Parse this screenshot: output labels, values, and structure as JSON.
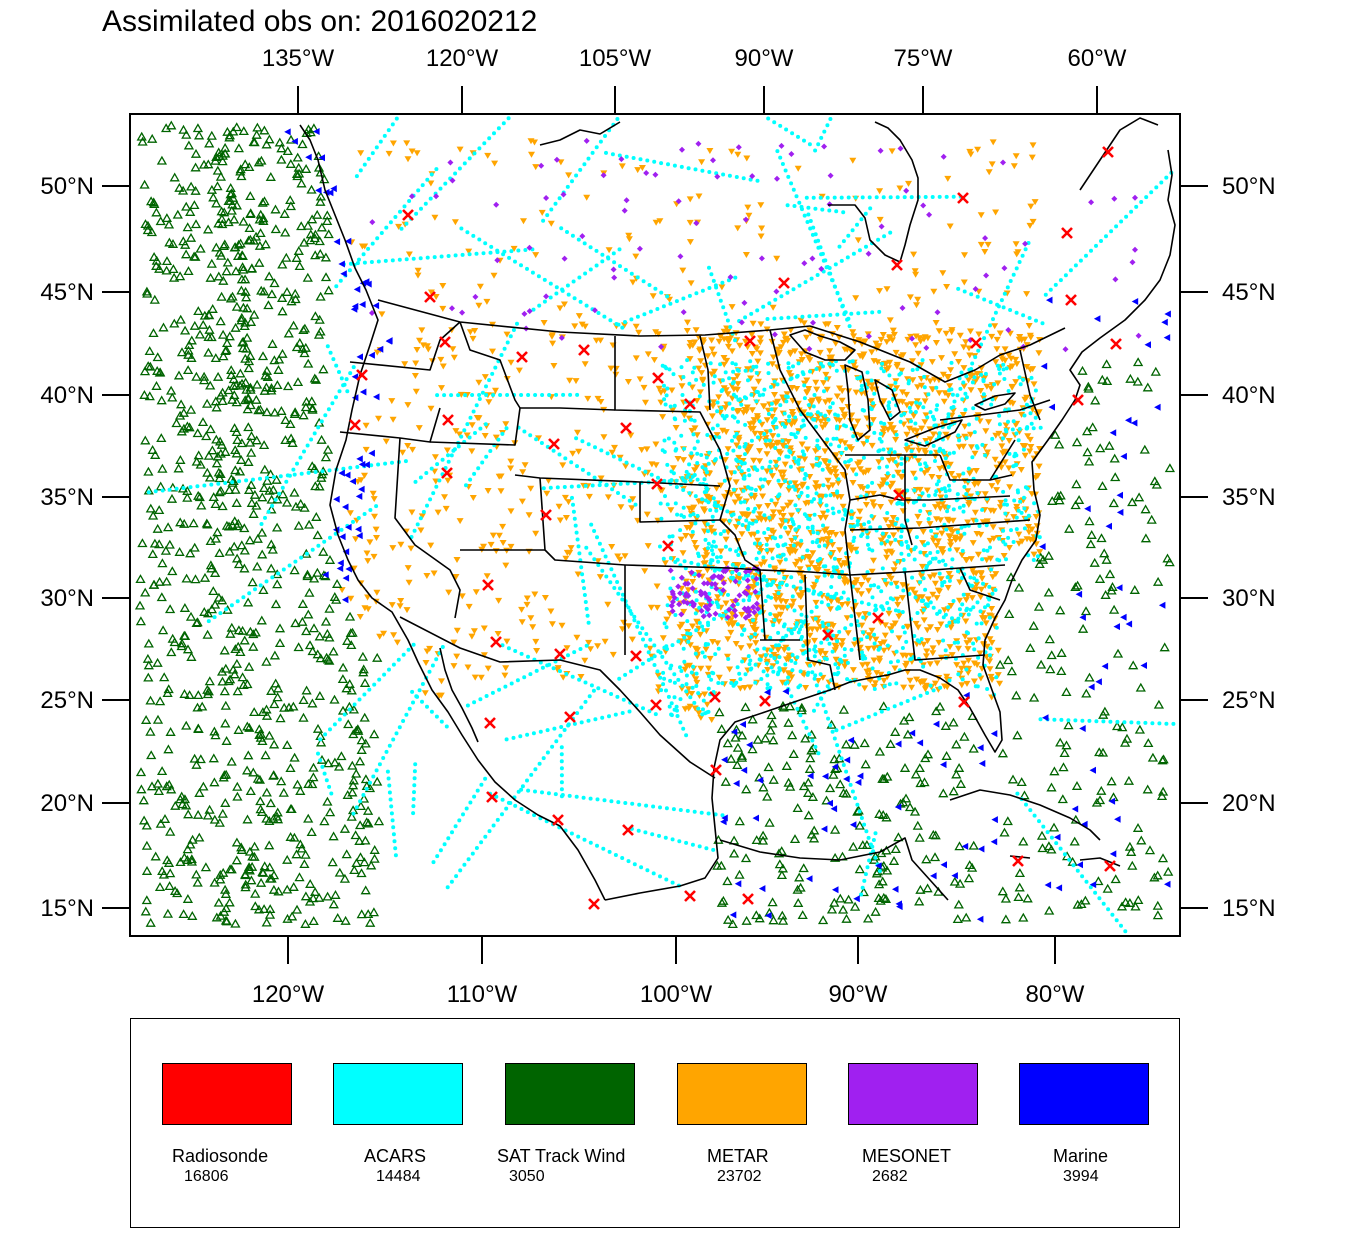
{
  "title": "Assimilated obs on: 2016020212",
  "map": {
    "top_lon_labels": [
      "135°W",
      "120°W",
      "105°W",
      "90°W",
      "75°W",
      "60°W"
    ],
    "bottom_lon_labels": [
      "120°W",
      "110°W",
      "100°W",
      "90°W",
      "80°W"
    ],
    "lat_labels": [
      "50°N",
      "45°N",
      "40°N",
      "35°N",
      "30°N",
      "25°N",
      "20°N",
      "15°N"
    ],
    "colors": {
      "frame": "#000000",
      "coast": "#000000",
      "background": "#ffffff"
    }
  },
  "legend": [
    {
      "name": "Radiosonde",
      "count": "16806",
      "color": "#ff0000",
      "symbol": "cross-icon"
    },
    {
      "name": "ACARS",
      "count": "14484",
      "color": "#00ffff",
      "symbol": "dot-icon"
    },
    {
      "name": "SAT Track Wind",
      "count": "3050",
      "color": "#006400",
      "symbol": "triangle-up-icon"
    },
    {
      "name": "METAR",
      "count": "23702",
      "color": "#ffa500",
      "symbol": "triangle-down-icon"
    },
    {
      "name": "MESONET",
      "count": "2682",
      "color": "#a020f0",
      "symbol": "diamond-icon"
    },
    {
      "name": "Marine",
      "count": "3994",
      "color": "#0000ff",
      "symbol": "triangle-left-icon"
    }
  ]
}
